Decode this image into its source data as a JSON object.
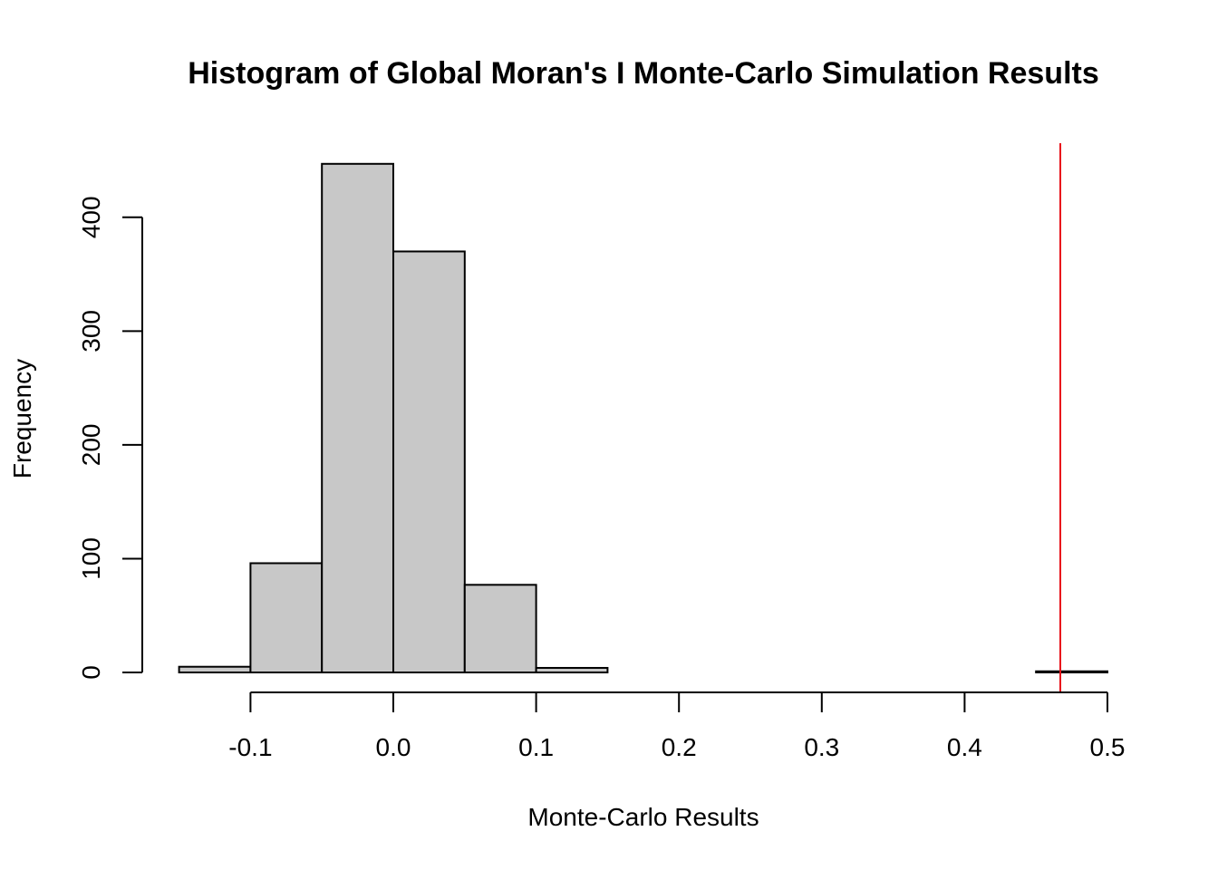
{
  "chart_data": {
    "type": "bar",
    "title": "Histogram of Global Moran's I Monte-Carlo Simulation Results",
    "xlabel": "Monte-Carlo Results",
    "ylabel": "Frequency",
    "bins": [
      {
        "from": -0.15,
        "to": -0.1,
        "count": 5
      },
      {
        "from": -0.1,
        "to": -0.05,
        "count": 96
      },
      {
        "from": -0.05,
        "to": 0.0,
        "count": 447
      },
      {
        "from": 0.0,
        "to": 0.05,
        "count": 370
      },
      {
        "from": 0.05,
        "to": 0.1,
        "count": 77
      },
      {
        "from": 0.1,
        "to": 0.15,
        "count": 4
      },
      {
        "from": 0.15,
        "to": 0.2,
        "count": 0
      },
      {
        "from": 0.2,
        "to": 0.25,
        "count": 0
      },
      {
        "from": 0.25,
        "to": 0.3,
        "count": 0
      },
      {
        "from": 0.3,
        "to": 0.35,
        "count": 0
      },
      {
        "from": 0.35,
        "to": 0.4,
        "count": 0
      },
      {
        "from": 0.4,
        "to": 0.45,
        "count": 0
      },
      {
        "from": 0.45,
        "to": 0.5,
        "count": 1
      }
    ],
    "xlim": [
      -0.15,
      0.5
    ],
    "ylim": [
      0,
      450
    ],
    "x_ticks": [
      -0.1,
      0.0,
      0.1,
      0.2,
      0.3,
      0.4,
      0.5
    ],
    "x_tick_labels": [
      "-0.1",
      "0.0",
      "0.1",
      "0.2",
      "0.3",
      "0.4",
      "0.5"
    ],
    "y_ticks": [
      0,
      100,
      200,
      300,
      400
    ],
    "y_tick_labels": [
      "0",
      "100",
      "200",
      "300",
      "400"
    ],
    "reference_line": {
      "x": 0.467,
      "color": "#e8121b"
    },
    "bar_color": "#c8c8c8",
    "grid": false,
    "legend": "none"
  }
}
